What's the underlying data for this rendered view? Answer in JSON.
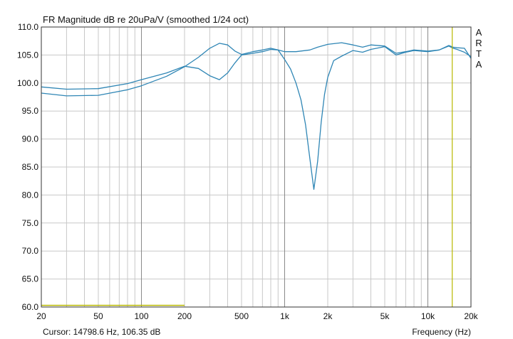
{
  "chart_data": {
    "type": "line",
    "title": "FR Magnitude dB re 20uPa/V (smoothed 1/24 oct)",
    "xlabel": "Frequency (Hz)",
    "ylabel": "",
    "xscale": "log",
    "xlim": [
      20,
      20000
    ],
    "ylim": [
      60,
      110
    ],
    "grid": true,
    "y_ticks": [
      60,
      65,
      70,
      75,
      80,
      85,
      90,
      95,
      100,
      105,
      110
    ],
    "y_tick_labels": [
      "60.0",
      "65.0",
      "70.0",
      "75.0",
      "80.0",
      "85.0",
      "90.0",
      "95.0",
      "100.0",
      "105.0",
      "110.0"
    ],
    "x_ticks": [
      20,
      50,
      100,
      200,
      500,
      1000,
      2000,
      5000,
      10000,
      20000
    ],
    "x_tick_labels": [
      "20",
      "50",
      "100",
      "200",
      "500",
      "1k",
      "2k",
      "5k",
      "10k",
      "20k"
    ],
    "brand": "ARTA",
    "cursor": {
      "frequency": 14798.6,
      "level": 106.35,
      "readout": "Cursor: 14798.6 Hz, 106.35 dB"
    },
    "series": [
      {
        "name": "response-1",
        "color": "#2f86b5",
        "x": [
          20,
          30,
          50,
          80,
          100,
          150,
          200,
          250,
          300,
          350,
          400,
          450,
          500,
          600,
          700,
          800,
          900,
          1000,
          1100,
          1200,
          1300,
          1400,
          1500,
          1600,
          1700,
          1800,
          1900,
          2000,
          2200,
          2500,
          3000,
          3500,
          4000,
          5000,
          6000,
          7000,
          8000,
          10000,
          12000,
          14000,
          15000,
          16000,
          18000,
          20000
        ],
        "values": [
          99.3,
          98.9,
          99.0,
          99.9,
          100.6,
          101.8,
          103.0,
          102.6,
          101.3,
          100.6,
          101.8,
          103.6,
          105.0,
          105.3,
          105.6,
          106.0,
          105.9,
          104.2,
          102.5,
          100.0,
          97.0,
          92.5,
          86.5,
          81.0,
          86.0,
          93.0,
          98.0,
          101.0,
          104.0,
          104.8,
          105.8,
          105.5,
          106.0,
          106.5,
          105.0,
          105.5,
          105.8,
          105.6,
          105.9,
          106.7,
          106.4,
          106.3,
          106.2,
          104.4
        ]
      },
      {
        "name": "response-2",
        "color": "#2f86b5",
        "x": [
          20,
          30,
          50,
          80,
          100,
          150,
          200,
          250,
          300,
          350,
          400,
          450,
          500,
          600,
          700,
          800,
          900,
          1000,
          1200,
          1500,
          1700,
          2000,
          2500,
          3000,
          3500,
          4000,
          5000,
          6000,
          7000,
          8000,
          10000,
          12000,
          14000,
          15000,
          16000,
          18000,
          20000
        ],
        "values": [
          98.2,
          97.7,
          97.8,
          98.8,
          99.5,
          101.2,
          102.9,
          104.6,
          106.2,
          107.1,
          106.8,
          105.7,
          105.1,
          105.6,
          105.9,
          106.2,
          105.9,
          105.6,
          105.6,
          105.9,
          106.4,
          106.9,
          107.2,
          106.8,
          106.4,
          106.8,
          106.6,
          105.3,
          105.6,
          105.9,
          105.7,
          105.9,
          106.6,
          106.2,
          106.0,
          105.5,
          104.7
        ]
      },
      {
        "name": "reference-line",
        "color": "#b8b800",
        "x": [
          20,
          200
        ],
        "values": [
          60.3,
          60.3
        ]
      }
    ]
  }
}
